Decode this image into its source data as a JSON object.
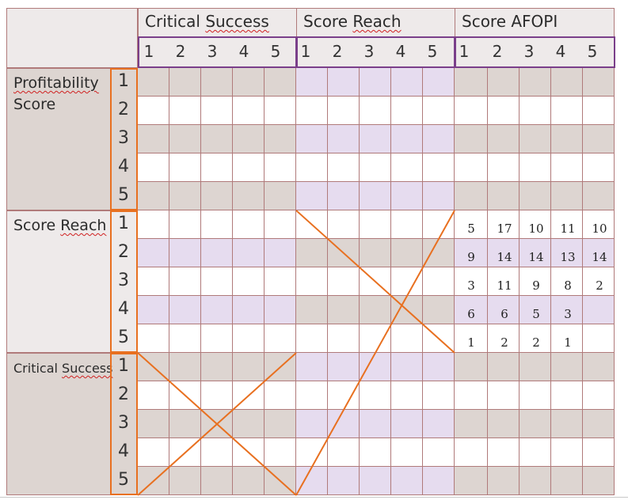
{
  "column_groups": [
    {
      "label": "Critical Success",
      "spell": "Success",
      "ticks": [
        "1",
        "2",
        "3",
        "4",
        "5"
      ]
    },
    {
      "label": "Score Reach",
      "spell": "Reach",
      "ticks": [
        "1",
        "2",
        "3",
        "4",
        "5"
      ]
    },
    {
      "label": "Score AFOPI",
      "spell": "",
      "ticks": [
        "1",
        "2",
        "3",
        "4",
        "5"
      ]
    }
  ],
  "row_groups": [
    {
      "label_lines": [
        "Profitability",
        "Score"
      ],
      "ticks": [
        "1",
        "2",
        "3",
        "4",
        "5"
      ]
    },
    {
      "label_lines": [
        "Score Reach"
      ],
      "ticks": [
        "1",
        "2",
        "3",
        "4",
        "5"
      ]
    },
    {
      "label_lines": [
        "Critical Success"
      ],
      "ticks": [
        "1",
        "2",
        "3",
        "4",
        "5"
      ]
    }
  ],
  "matrix_values": [
    [
      "5",
      "17",
      "10",
      "11",
      "10"
    ],
    [
      "9",
      "14",
      "14",
      "13",
      "14"
    ],
    [
      "3",
      "11",
      "9",
      "8",
      "2"
    ],
    [
      "6",
      "6",
      "5",
      "3",
      ""
    ],
    [
      "1",
      "2",
      "2",
      "1",
      ""
    ]
  ],
  "colors": {
    "grid_line": "#b07a7a",
    "shade_beige": "#ddd5d1",
    "shade_lavender": "#e6dcef",
    "white": "#ffffff",
    "header_bg": "#eeeaea",
    "purple_border": "#7a3f8a",
    "orange": "#e87020"
  }
}
